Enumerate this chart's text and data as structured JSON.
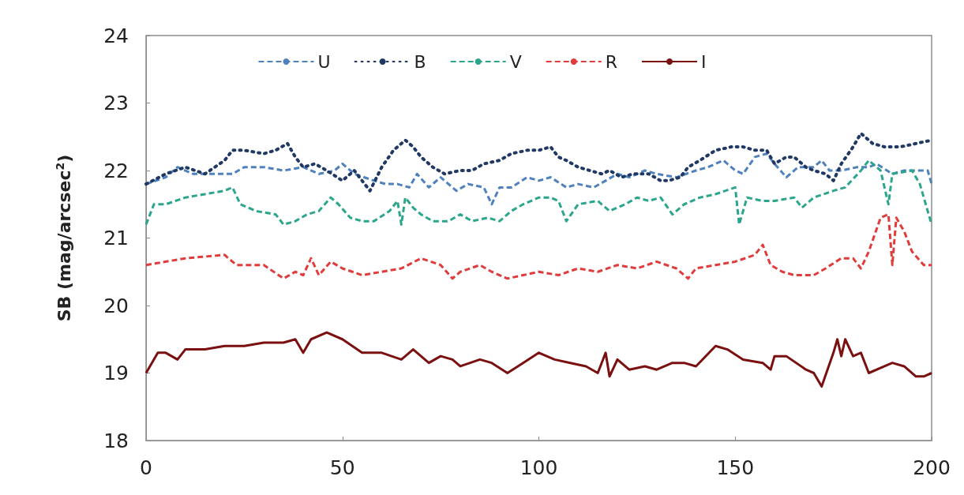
{
  "chart_data": {
    "type": "line",
    "ylabel": "SB (mag/arcsec$^{2}$)",
    "xlim": [
      0,
      200
    ],
    "xticks": [
      0,
      50,
      100,
      150,
      200
    ],
    "ylim": [
      18,
      24
    ],
    "yticks": [
      18,
      19,
      20,
      21,
      22,
      23,
      24
    ],
    "grid": false,
    "legend": "top",
    "marker": "none",
    "series": [
      {
        "name": "U",
        "color": "#4f81bd",
        "line_style": "dashed",
        "x": [
          0,
          5,
          8,
          12,
          18,
          22,
          25,
          30,
          35,
          40,
          44,
          48,
          50,
          53,
          58,
          61,
          64,
          67,
          69,
          72,
          75,
          77,
          79,
          82,
          86,
          88,
          90,
          93,
          97,
          100,
          103,
          107,
          110,
          114,
          117,
          120,
          123,
          127,
          130,
          135,
          140,
          143,
          147,
          150,
          152,
          155,
          158,
          160,
          163,
          166,
          170,
          172,
          174,
          177,
          181,
          184,
          186,
          190,
          193,
          196,
          199,
          200
        ],
        "values": [
          21.8,
          21.9,
          22.05,
          21.95,
          21.95,
          21.95,
          22.05,
          22.05,
          22.0,
          22.05,
          21.95,
          22.0,
          22.1,
          21.95,
          21.85,
          21.8,
          21.8,
          21.75,
          21.95,
          21.75,
          21.9,
          21.8,
          21.7,
          21.8,
          21.75,
          21.5,
          21.75,
          21.75,
          21.9,
          21.85,
          21.9,
          21.75,
          21.8,
          21.75,
          21.85,
          21.95,
          21.9,
          22.0,
          21.95,
          21.9,
          22.0,
          22.05,
          22.15,
          22.0,
          21.95,
          22.2,
          22.25,
          22.1,
          21.9,
          22.05,
          22.05,
          22.15,
          22.0,
          22.0,
          22.05,
          22.05,
          22.1,
          21.95,
          22.0,
          22.0,
          22.0,
          21.8
        ]
      },
      {
        "name": "B",
        "color": "#1f3864",
        "line_style": "dotted",
        "x": [
          0,
          5,
          10,
          15,
          20,
          22,
          25,
          30,
          33,
          36,
          38,
          40,
          43,
          46,
          50,
          53,
          57,
          60,
          63,
          66,
          68,
          70,
          73,
          76,
          80,
          83,
          86,
          90,
          93,
          97,
          100,
          103,
          105,
          107,
          110,
          113,
          116,
          118,
          121,
          124,
          128,
          131,
          133,
          136,
          138,
          141,
          145,
          149,
          152,
          155,
          158,
          160,
          163,
          165,
          168,
          170,
          173,
          175,
          177,
          180,
          182,
          185,
          188,
          192,
          196,
          200
        ],
        "values": [
          21.8,
          21.95,
          22.05,
          21.95,
          22.15,
          22.3,
          22.3,
          22.25,
          22.3,
          22.4,
          22.2,
          22.05,
          22.1,
          22.0,
          21.85,
          22.0,
          21.7,
          22.05,
          22.3,
          22.45,
          22.35,
          22.2,
          22.05,
          21.95,
          22.0,
          22.0,
          22.1,
          22.15,
          22.25,
          22.3,
          22.3,
          22.35,
          22.2,
          22.15,
          22.05,
          22.0,
          21.95,
          22.0,
          21.9,
          21.95,
          21.95,
          21.85,
          21.85,
          21.9,
          22.05,
          22.15,
          22.3,
          22.35,
          22.35,
          22.3,
          22.3,
          22.1,
          22.2,
          22.2,
          22.05,
          22.0,
          21.95,
          21.85,
          22.1,
          22.35,
          22.55,
          22.4,
          22.35,
          22.35,
          22.4,
          22.45
        ]
      },
      {
        "name": "V",
        "color": "#2ca58d",
        "line_style": "dashed",
        "x": [
          0,
          2,
          5,
          10,
          15,
          20,
          22,
          24,
          28,
          33,
          35,
          38,
          41,
          44,
          47,
          49,
          52,
          55,
          58,
          62,
          64,
          65,
          66,
          68,
          70,
          73,
          77,
          80,
          83,
          87,
          90,
          93,
          96,
          100,
          103,
          105,
          107,
          110,
          115,
          118,
          122,
          125,
          128,
          131,
          134,
          137,
          141,
          145,
          150,
          151,
          153,
          157,
          160,
          165,
          167,
          170,
          175,
          178,
          182,
          184,
          187,
          189,
          190,
          195,
          197,
          200
        ],
        "values": [
          21.2,
          21.5,
          21.5,
          21.6,
          21.65,
          21.7,
          21.75,
          21.5,
          21.4,
          21.35,
          21.2,
          21.25,
          21.35,
          21.4,
          21.6,
          21.5,
          21.3,
          21.25,
          21.25,
          21.4,
          21.55,
          21.2,
          21.6,
          21.45,
          21.35,
          21.25,
          21.25,
          21.35,
          21.25,
          21.3,
          21.25,
          21.4,
          21.5,
          21.6,
          21.6,
          21.55,
          21.25,
          21.5,
          21.55,
          21.4,
          21.5,
          21.6,
          21.55,
          21.6,
          21.35,
          21.5,
          21.6,
          21.65,
          21.75,
          21.2,
          21.6,
          21.55,
          21.55,
          21.6,
          21.45,
          21.6,
          21.7,
          21.75,
          22.0,
          22.15,
          22.0,
          21.5,
          21.95,
          22.0,
          21.8,
          21.2
        ]
      },
      {
        "name": "R",
        "color": "#e03c3c",
        "line_style": "dashed",
        "x": [
          0,
          10,
          20,
          23,
          30,
          35,
          38,
          40,
          42,
          44,
          47,
          50,
          55,
          60,
          65,
          70,
          75,
          78,
          80,
          85,
          88,
          92,
          96,
          100,
          105,
          110,
          115,
          120,
          125,
          130,
          135,
          138,
          140,
          145,
          150,
          155,
          157,
          159,
          162,
          165,
          170,
          173,
          177,
          180,
          182,
          184,
          187,
          189,
          190,
          191,
          193,
          195,
          198,
          200
        ],
        "values": [
          20.6,
          20.7,
          20.75,
          20.6,
          20.6,
          20.4,
          20.5,
          20.45,
          20.7,
          20.45,
          20.65,
          20.55,
          20.45,
          20.5,
          20.55,
          20.7,
          20.6,
          20.4,
          20.5,
          20.6,
          20.5,
          20.4,
          20.45,
          20.5,
          20.45,
          20.55,
          20.5,
          20.6,
          20.55,
          20.65,
          20.55,
          20.4,
          20.55,
          20.6,
          20.65,
          20.75,
          20.9,
          20.6,
          20.5,
          20.45,
          20.45,
          20.55,
          20.7,
          20.7,
          20.55,
          20.8,
          21.3,
          21.35,
          20.6,
          21.3,
          21.1,
          20.8,
          20.6,
          20.6
        ]
      },
      {
        "name": "I",
        "color": "#7b1010",
        "line_style": "solid",
        "x": [
          0,
          3,
          5,
          8,
          10,
          15,
          20,
          25,
          30,
          35,
          38,
          40,
          42,
          46,
          50,
          55,
          60,
          65,
          68,
          72,
          75,
          78,
          80,
          85,
          88,
          92,
          96,
          100,
          104,
          108,
          112,
          115,
          117,
          118,
          120,
          123,
          127,
          130,
          134,
          137,
          140,
          145,
          148,
          152,
          157,
          159,
          160,
          163,
          168,
          170,
          172,
          175,
          176,
          177,
          178,
          180,
          182,
          184,
          188,
          190,
          193,
          196,
          198,
          200
        ],
        "values": [
          19.0,
          19.3,
          19.3,
          19.2,
          19.35,
          19.35,
          19.4,
          19.4,
          19.45,
          19.45,
          19.5,
          19.3,
          19.5,
          19.6,
          19.5,
          19.3,
          19.3,
          19.2,
          19.35,
          19.15,
          19.25,
          19.2,
          19.1,
          19.2,
          19.15,
          19.0,
          19.15,
          19.3,
          19.2,
          19.15,
          19.1,
          19.0,
          19.3,
          18.95,
          19.2,
          19.05,
          19.1,
          19.05,
          19.15,
          19.15,
          19.1,
          19.4,
          19.35,
          19.2,
          19.15,
          19.05,
          19.25,
          19.25,
          19.05,
          19.0,
          18.8,
          19.3,
          19.5,
          19.25,
          19.5,
          19.25,
          19.3,
          19.0,
          19.1,
          19.15,
          19.1,
          18.95,
          18.95,
          19.0
        ]
      }
    ]
  }
}
